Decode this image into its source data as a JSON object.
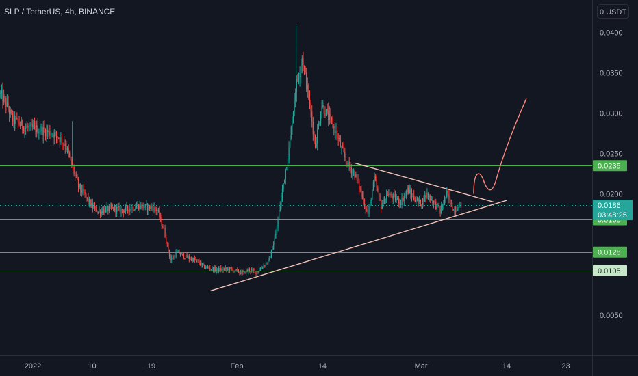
{
  "header": {
    "symbol_title": "SLP / TetherUS, 4h, BINANCE",
    "currency_label": "0 USDT"
  },
  "chart_data": {
    "type": "candlestick",
    "title": "SLP / TetherUS, 4h, BINANCE",
    "y_unit": "USDT",
    "ylim": [
      0.0,
      0.044
    ],
    "y_ticks": [
      {
        "value": 0.04,
        "label": "0.0400"
      },
      {
        "value": 0.035,
        "label": "0.0350"
      },
      {
        "value": 0.03,
        "label": "0.0300"
      },
      {
        "value": 0.025,
        "label": "0.0250"
      },
      {
        "value": 0.02,
        "label": "0.0200"
      },
      {
        "value": 0.005,
        "label": "0.0050"
      }
    ],
    "x_range": [
      "2021-12-27",
      "2022-03-27"
    ],
    "x_ticks": [
      {
        "date": "2022-01-01",
        "label": "2022"
      },
      {
        "date": "2022-01-10",
        "label": "10"
      },
      {
        "date": "2022-01-19",
        "label": "19"
      },
      {
        "date": "2022-02-01",
        "label": "Feb"
      },
      {
        "date": "2022-02-14",
        "label": "14"
      },
      {
        "date": "2022-03-01",
        "label": "Mar"
      },
      {
        "date": "2022-03-14",
        "label": "14"
      },
      {
        "date": "2022-03-23",
        "label": "23"
      }
    ],
    "price_path": [
      [
        "2021-12-27",
        0.0325
      ],
      [
        "2021-12-28",
        0.0312
      ],
      [
        "2021-12-29",
        0.0292
      ],
      [
        "2021-12-31",
        0.0282
      ],
      [
        "2022-01-02",
        0.028
      ],
      [
        "2022-01-04",
        0.0275
      ],
      [
        "2022-01-05",
        0.027
      ],
      [
        "2022-01-06",
        0.0262
      ],
      [
        "2022-01-07",
        0.0235
      ],
      [
        "2022-01-08",
        0.021
      ],
      [
        "2022-01-10",
        0.0185
      ],
      [
        "2022-01-11",
        0.0178
      ],
      [
        "2022-01-13",
        0.0182
      ],
      [
        "2022-01-15",
        0.018
      ],
      [
        "2022-01-17",
        0.0185
      ],
      [
        "2022-01-19",
        0.0183
      ],
      [
        "2022-01-20",
        0.018
      ],
      [
        "2022-01-21",
        0.0155
      ],
      [
        "2022-01-22",
        0.0118
      ],
      [
        "2022-01-23",
        0.0128
      ],
      [
        "2022-01-24",
        0.0123
      ],
      [
        "2022-01-26",
        0.0117
      ],
      [
        "2022-01-27",
        0.011
      ],
      [
        "2022-01-29",
        0.0106
      ],
      [
        "2022-01-31",
        0.0107
      ],
      [
        "2022-02-02",
        0.0102
      ],
      [
        "2022-02-03",
        0.0106
      ],
      [
        "2022-02-04",
        0.0103
      ],
      [
        "2022-02-05",
        0.011
      ],
      [
        "2022-02-06",
        0.0118
      ],
      [
        "2022-02-07",
        0.015
      ],
      [
        "2022-02-08",
        0.0205
      ],
      [
        "2022-02-09",
        0.0255
      ],
      [
        "2022-02-10",
        0.033
      ],
      [
        "2022-02-11",
        0.037
      ],
      [
        "2022-02-12",
        0.032
      ],
      [
        "2022-02-13",
        0.026
      ],
      [
        "2022-02-14",
        0.031
      ],
      [
        "2022-02-15",
        0.0295
      ],
      [
        "2022-02-16",
        0.028
      ],
      [
        "2022-02-17",
        0.0255
      ],
      [
        "2022-02-18",
        0.0235
      ],
      [
        "2022-02-19",
        0.0225
      ],
      [
        "2022-02-20",
        0.02
      ],
      [
        "2022-02-21",
        0.0175
      ],
      [
        "2022-02-22",
        0.0218
      ],
      [
        "2022-02-23",
        0.0185
      ],
      [
        "2022-02-24",
        0.02
      ],
      [
        "2022-02-25",
        0.0195
      ],
      [
        "2022-02-26",
        0.019
      ],
      [
        "2022-02-27",
        0.0205
      ],
      [
        "2022-02-28",
        0.0195
      ],
      [
        "2022-03-01",
        0.0188
      ],
      [
        "2022-03-02",
        0.02
      ],
      [
        "2022-03-03",
        0.019
      ],
      [
        "2022-03-04",
        0.0178
      ],
      [
        "2022-03-05",
        0.02
      ],
      [
        "2022-03-06",
        0.018
      ],
      [
        "2022-03-07",
        0.0186
      ]
    ],
    "spikes": [
      {
        "date": "2022-01-07",
        "high": 0.029
      },
      {
        "date": "2022-02-10",
        "high": 0.0408
      }
    ],
    "horizontal_levels": [
      {
        "value": 0.0235,
        "label": "0.0235",
        "style": "filled"
      },
      {
        "value": 0.0168,
        "label": "0.0168",
        "style": "filled"
      },
      {
        "value": 0.0128,
        "label": "0.0128",
        "style": "filled"
      },
      {
        "value": 0.0105,
        "label": "0.0105",
        "style": "light"
      }
    ],
    "current_price": {
      "value": 0.0186,
      "label": "0.0186",
      "countdown": "03:48:25"
    },
    "trendlines": [
      {
        "name": "support",
        "points": [
          [
            "2022-01-28",
            0.008
          ],
          [
            "2022-03-14",
            0.0192
          ]
        ]
      },
      {
        "name": "resistance",
        "points": [
          [
            "2022-02-19",
            0.0238
          ],
          [
            "2022-03-12",
            0.019
          ]
        ]
      }
    ],
    "projection_path": [
      [
        "2022-03-09",
        0.02
      ],
      [
        "2022-03-09",
        0.022
      ],
      [
        "2022-03-10",
        0.0228
      ],
      [
        "2022-03-11",
        0.0205
      ],
      [
        "2022-03-12",
        0.0205
      ],
      [
        "2022-03-13",
        0.0235
      ],
      [
        "2022-03-15",
        0.028
      ],
      [
        "2022-03-17",
        0.0318
      ]
    ],
    "grid": false,
    "colors": {
      "background": "#131722",
      "up": "#26a69a",
      "down": "#ef5350",
      "level_line": "#4caf50",
      "level_tag": "#4caf50",
      "level_tag_light": "#c8e6c9",
      "current_tag": "#26a69a",
      "trendline": "#f2c3b5",
      "projection": "#ff8a80",
      "axis_text": "#b2b5be"
    }
  }
}
